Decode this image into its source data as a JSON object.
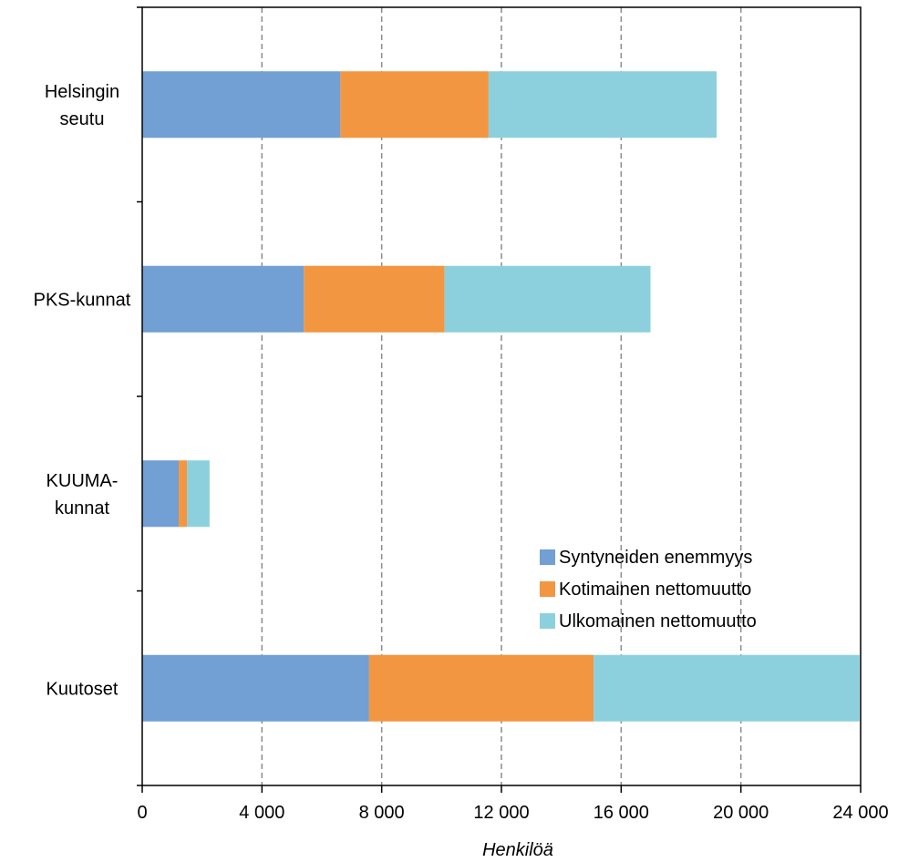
{
  "chart_data": {
    "type": "bar",
    "orientation": "horizontal",
    "stacked": true,
    "title": "",
    "xlabel": "Henkilöä",
    "ylabel": "",
    "xlim": [
      0,
      24000
    ],
    "xticks": [
      0,
      4000,
      8000,
      12000,
      16000,
      20000,
      24000
    ],
    "xtick_labels": [
      "0",
      "4 000",
      "8 000",
      "12 000",
      "16 000",
      "20 000",
      "24 000"
    ],
    "grid": "vertical dashed",
    "legend_position": "lower-right",
    "categories": [
      {
        "lines": [
          "Helsingin",
          "seutu"
        ]
      },
      {
        "lines": [
          "PKS-kunnat"
        ]
      },
      {
        "lines": [
          "KUUMA-",
          "kunnat"
        ]
      },
      {
        "lines": [
          "Kuutoset"
        ]
      }
    ],
    "series": [
      {
        "name": "Syntyneiden enemmyys",
        "color": "#729fd4",
        "values": [
          6620,
          5400,
          1220,
          7580
        ]
      },
      {
        "name": "Kotimainen nettomuutto",
        "color": "#f39641",
        "values": [
          4950,
          4700,
          280,
          7500
        ]
      },
      {
        "name": "Ulkomainen nettomuutto",
        "color": "#8dd0dd",
        "values": [
          7620,
          6880,
          750,
          8880
        ]
      }
    ]
  }
}
